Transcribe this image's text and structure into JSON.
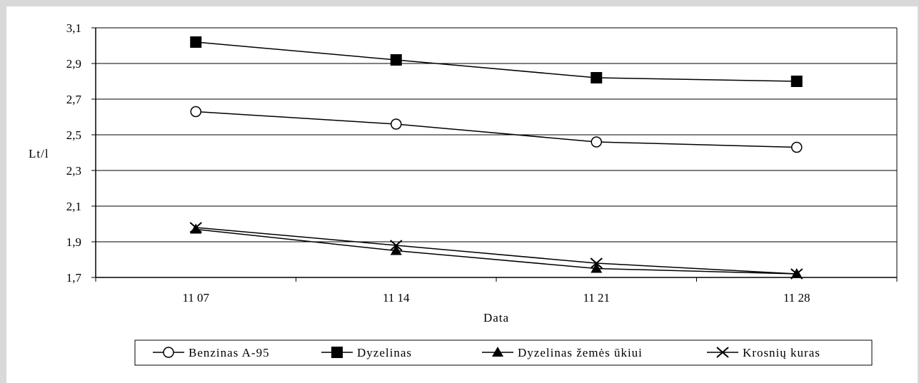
{
  "chart_data": {
    "type": "line",
    "title": "",
    "xlabel": "Data",
    "ylabel": "Lt/l",
    "categories": [
      "11 07",
      "11 14",
      "11 21",
      "11 28"
    ],
    "ylim": [
      1.7,
      3.1
    ],
    "yticks": [
      "1,7",
      "1,9",
      "2,1",
      "2,3",
      "2,5",
      "2,7",
      "2,9",
      "3,1"
    ],
    "grid": true,
    "legend_position": "bottom",
    "series": [
      {
        "name": "Benzinas A-95",
        "marker": "circle-open",
        "values": [
          2.63,
          2.56,
          2.46,
          2.43
        ]
      },
      {
        "name": "Dyzelinas",
        "marker": "square-filled",
        "values": [
          3.02,
          2.92,
          2.82,
          2.8
        ]
      },
      {
        "name": "Dyzelinas žemės ūkiui",
        "marker": "triangle-filled",
        "values": [
          1.97,
          1.85,
          1.75,
          1.72
        ]
      },
      {
        "name": "Krosnių kuras",
        "marker": "x-cross",
        "values": [
          1.98,
          1.88,
          1.78,
          1.72
        ]
      }
    ]
  }
}
